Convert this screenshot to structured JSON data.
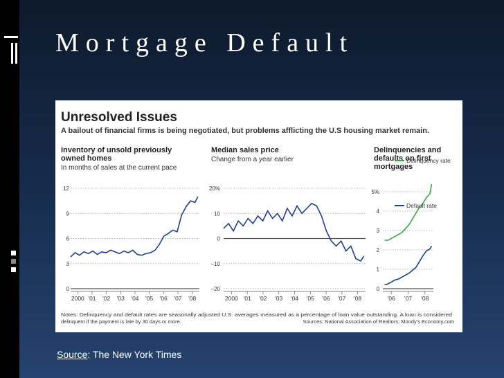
{
  "slide": {
    "title": "Mortgage Default",
    "source_label": "Source",
    "source_text": ": The New York Times"
  },
  "figure": {
    "headline": "Unresolved Issues",
    "subheadline": "A bailout of financial firms is being negotiated, but problems afflicting the U.S housing market remain.",
    "notes_line1": "Notes: Delinquency and default rates are seasonally adjusted U.S. averages measured as a percentage of loan value outstanding. A loan is considered",
    "notes_line2": "delinquent if the payment is late by 30 days or more.",
    "sources": "Sources: National Association of Realtors; Moody's Economy.com"
  },
  "colors": {
    "series_blue": "#1e3f8a",
    "series_green": "#3aa64a",
    "grid": "#999999"
  },
  "chart_data": [
    {
      "type": "line",
      "title_lines": [
        "Inventory of unsold previously",
        "owned homes"
      ],
      "subtitle": "In months of sales at the current pace",
      "x_labels": [
        "2000",
        "'01",
        "'02",
        "'03",
        "'04",
        "'05",
        "'06",
        "'07",
        "'08"
      ],
      "y_ticks": [
        "12",
        "9",
        "6",
        "3",
        "0"
      ],
      "ylim": [
        0,
        12
      ],
      "xlim": [
        2000,
        2008.7
      ],
      "series": [
        {
          "x": [
            2000.0,
            2000.3,
            2000.6,
            2000.9,
            2001.2,
            2001.5,
            2001.8,
            2002.1,
            2002.4,
            2002.7,
            2003.0,
            2003.3,
            2003.6,
            2003.9,
            2004.2,
            2004.5,
            2004.8,
            2005.1,
            2005.4,
            2005.7,
            2006.0,
            2006.3,
            2006.6,
            2006.9,
            2007.2,
            2007.5,
            2007.8,
            2008.1,
            2008.4,
            2008.6
          ],
          "values": [
            3.8,
            4.3,
            4.0,
            4.4,
            4.2,
            4.5,
            4.1,
            4.4,
            4.3,
            4.6,
            4.4,
            4.2,
            4.5,
            4.3,
            4.6,
            4.1,
            4.0,
            4.2,
            4.3,
            4.6,
            5.3,
            6.3,
            6.6,
            7.0,
            6.8,
            8.8,
            9.8,
            10.5,
            10.3,
            11.0
          ]
        }
      ]
    },
    {
      "type": "line",
      "title_lines": [
        "Median sales price"
      ],
      "subtitle": "Change from a year earlier",
      "x_labels": [
        "2000",
        "'01",
        "'02",
        "'03",
        "'04",
        "'05",
        "'06",
        "'07",
        "'08"
      ],
      "y_ticks": [
        "20%",
        "10",
        "0",
        "−10",
        "−20"
      ],
      "ylim": [
        -20,
        20
      ],
      "xlim": [
        2000,
        2008.7
      ],
      "series": [
        {
          "x": [
            2000.0,
            2000.3,
            2000.6,
            2000.9,
            2001.2,
            2001.5,
            2001.8,
            2002.1,
            2002.4,
            2002.7,
            2003.0,
            2003.3,
            2003.6,
            2003.9,
            2004.2,
            2004.5,
            2004.8,
            2005.1,
            2005.4,
            2005.7,
            2006.0,
            2006.3,
            2006.6,
            2006.9,
            2007.2,
            2007.5,
            2007.8,
            2008.1,
            2008.4,
            2008.6
          ],
          "values": [
            4,
            6,
            3,
            7,
            5,
            8,
            6,
            9,
            7,
            11,
            8,
            10,
            7,
            12,
            9,
            13,
            10,
            12,
            14,
            13,
            9,
            3,
            -1,
            -3,
            -1,
            -5,
            -3,
            -8,
            -9,
            -7
          ]
        }
      ]
    },
    {
      "type": "line",
      "title_lines": [
        "Delinquencies and",
        "defaults on first",
        "mortgages"
      ],
      "x_labels": [
        "'06",
        "'07",
        "'08"
      ],
      "y_ticks": [
        "5%",
        "4",
        "3",
        "2",
        "1",
        "0"
      ],
      "ylim": [
        0,
        5.5
      ],
      "xlim": [
        2005.7,
        2008.6
      ],
      "series": [
        {
          "name": "Delinquency rate",
          "x": [
            2005.8,
            2006.0,
            2006.2,
            2006.4,
            2006.6,
            2006.8,
            2007.0,
            2007.2,
            2007.4,
            2007.6,
            2007.8,
            2008.0,
            2008.2,
            2008.4,
            2008.5
          ],
          "values": [
            2.5,
            2.5,
            2.6,
            2.7,
            2.8,
            2.9,
            3.1,
            3.3,
            3.6,
            3.9,
            4.2,
            4.4,
            4.7,
            4.9,
            5.4
          ]
        },
        {
          "name": "Default rate",
          "x": [
            2005.8,
            2006.0,
            2006.2,
            2006.4,
            2006.6,
            2006.8,
            2007.0,
            2007.2,
            2007.4,
            2007.6,
            2007.8,
            2008.0,
            2008.2,
            2008.4,
            2008.5
          ],
          "values": [
            0.2,
            0.25,
            0.35,
            0.45,
            0.5,
            0.6,
            0.7,
            0.8,
            0.95,
            1.1,
            1.4,
            1.7,
            1.95,
            2.05,
            2.2
          ]
        }
      ]
    }
  ]
}
